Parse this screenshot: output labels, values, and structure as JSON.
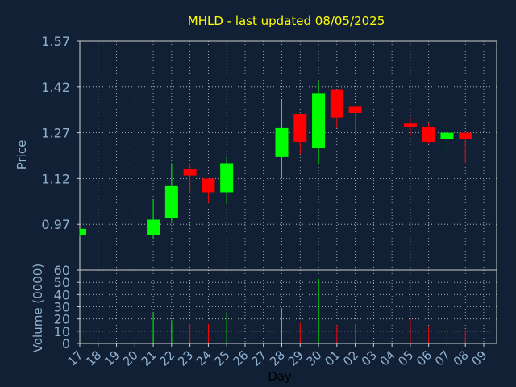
{
  "chart_data": {
    "type": "candlestick",
    "title": "MHLD - last updated 08/05/2025",
    "xlabel": "Day",
    "price_ylabel": "Price",
    "volume_ylabel": "Volume (0000)",
    "x_tick_labels": [
      "17",
      "18",
      "19",
      "20",
      "21",
      "22",
      "23",
      "24",
      "25",
      "26",
      "27",
      "28",
      "29",
      "30",
      "01",
      "02",
      "03",
      "04",
      "05",
      "06",
      "07",
      "08",
      "09"
    ],
    "price_ylim": [
      0.82,
      1.57
    ],
    "price_ticks": [
      "1.57",
      "1.42",
      "1.27",
      "1.12",
      "0.97"
    ],
    "price_tick_values": [
      1.57,
      1.42,
      1.27,
      1.12,
      0.97
    ],
    "volume_ylim": [
      0,
      60
    ],
    "volume_ticks": [
      "60",
      "50",
      "40",
      "30",
      "20",
      "10",
      "0"
    ],
    "volume_tick_values": [
      60,
      50,
      40,
      30,
      20,
      10,
      0
    ],
    "grid": true,
    "colors": {
      "background": "#112034",
      "plot_bg": "#112034",
      "grid": "#c8c8c8",
      "title": "#ffff00",
      "axis_text": "#8fb0d0",
      "up": "#00ff00",
      "down": "#ff0000"
    },
    "candles": [
      {
        "day": "17",
        "open": 0.935,
        "high": 0.955,
        "low": 0.93,
        "close": 0.955,
        "volume": 0
      },
      {
        "day": "21",
        "open": 0.935,
        "high": 1.05,
        "low": 0.925,
        "close": 0.985,
        "volume": 25
      },
      {
        "day": "22",
        "open": 0.99,
        "high": 1.17,
        "low": 0.98,
        "close": 1.095,
        "volume": 19
      },
      {
        "day": "23",
        "open": 1.15,
        "high": 1.17,
        "low": 1.07,
        "close": 1.13,
        "volume": 16
      },
      {
        "day": "24",
        "open": 1.12,
        "high": 1.12,
        "low": 1.04,
        "close": 1.075,
        "volume": 16
      },
      {
        "day": "25",
        "open": 1.075,
        "high": 1.19,
        "low": 1.035,
        "close": 1.17,
        "volume": 25
      },
      {
        "day": "28",
        "open": 1.19,
        "high": 1.38,
        "low": 1.12,
        "close": 1.285,
        "volume": 29
      },
      {
        "day": "29",
        "open": 1.33,
        "high": 1.33,
        "low": 1.2,
        "close": 1.24,
        "volume": 17
      },
      {
        "day": "30",
        "open": 1.22,
        "high": 1.44,
        "low": 1.165,
        "close": 1.4,
        "volume": 53
      },
      {
        "day": "01",
        "open": 1.41,
        "high": 1.41,
        "low": 1.285,
        "close": 1.32,
        "volume": 15
      },
      {
        "day": "02",
        "open": 1.355,
        "high": 1.355,
        "low": 1.26,
        "close": 1.335,
        "volume": 16
      },
      {
        "day": "05",
        "open": 1.3,
        "high": 1.32,
        "low": 1.26,
        "close": 1.29,
        "volume": 20
      },
      {
        "day": "06",
        "open": 1.29,
        "high": 1.3,
        "low": 1.235,
        "close": 1.24,
        "volume": 14
      },
      {
        "day": "07",
        "open": 1.25,
        "high": 1.29,
        "low": 1.2,
        "close": 1.27,
        "volume": 16
      },
      {
        "day": "08",
        "open": 1.27,
        "high": 1.27,
        "low": 1.17,
        "close": 1.25,
        "volume": 11
      }
    ]
  }
}
